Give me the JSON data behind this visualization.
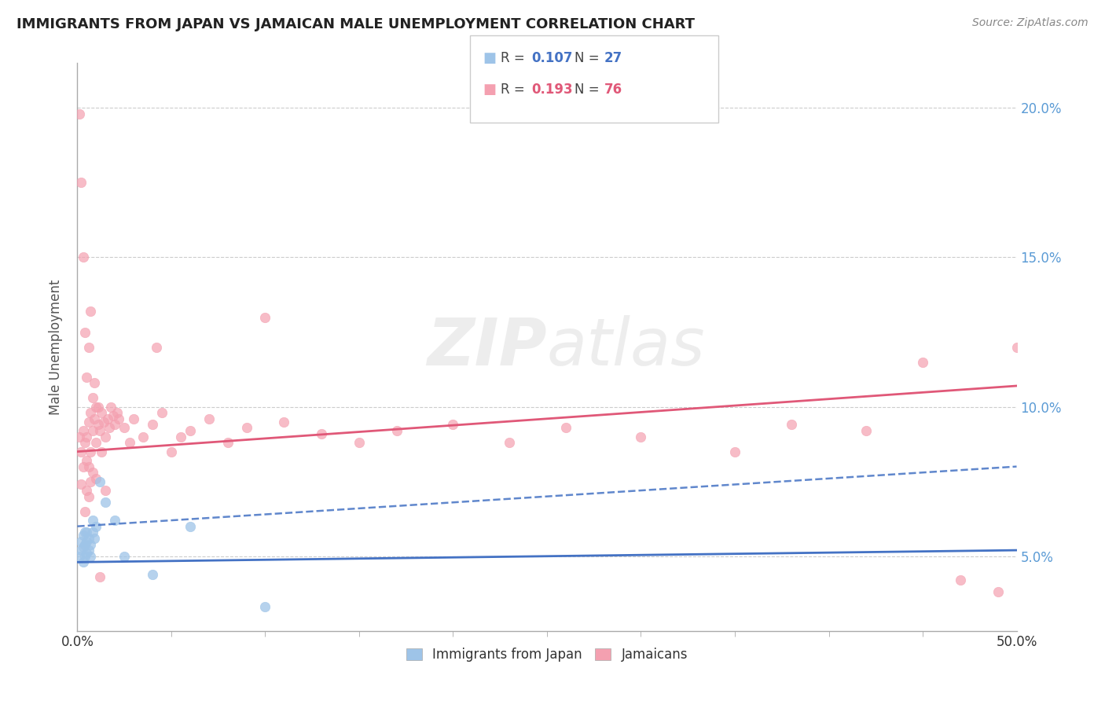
{
  "title": "IMMIGRANTS FROM JAPAN VS JAMAICAN MALE UNEMPLOYMENT CORRELATION CHART",
  "source": "Source: ZipAtlas.com",
  "ylabel": "Male Unemployment",
  "watermark": "ZIPatlas",
  "legend_label1": "Immigrants from Japan",
  "legend_label2": "Jamaicans",
  "xlim": [
    0.0,
    0.5
  ],
  "ylim": [
    0.025,
    0.215
  ],
  "yticks": [
    0.05,
    0.1,
    0.15,
    0.2
  ],
  "ytick_right_labels": [
    "5.0%",
    "10.0%",
    "15.0%",
    "20.0%"
  ],
  "color_blue": "#9EC4E8",
  "color_pink": "#F4A0B0",
  "color_blue_line": "#4472C4",
  "color_pink_line": "#E05878",
  "blue_line_start": 0.048,
  "blue_line_end": 0.052,
  "pink_line_start": 0.085,
  "pink_line_end": 0.107,
  "dash_line_start": 0.06,
  "dash_line_end": 0.08,
  "japan_x": [
    0.001,
    0.002,
    0.002,
    0.003,
    0.003,
    0.003,
    0.004,
    0.004,
    0.004,
    0.005,
    0.005,
    0.005,
    0.006,
    0.006,
    0.007,
    0.007,
    0.008,
    0.008,
    0.009,
    0.01,
    0.012,
    0.015,
    0.02,
    0.025,
    0.04,
    0.06,
    0.1
  ],
  "japan_y": [
    0.05,
    0.052,
    0.055,
    0.048,
    0.053,
    0.057,
    0.05,
    0.054,
    0.058,
    0.051,
    0.055,
    0.058,
    0.052,
    0.056,
    0.05,
    0.054,
    0.058,
    0.062,
    0.056,
    0.06,
    0.075,
    0.068,
    0.062,
    0.05,
    0.044,
    0.06,
    0.033
  ],
  "jamaican_x": [
    0.001,
    0.001,
    0.002,
    0.002,
    0.003,
    0.003,
    0.004,
    0.004,
    0.005,
    0.005,
    0.005,
    0.006,
    0.006,
    0.006,
    0.007,
    0.007,
    0.007,
    0.008,
    0.008,
    0.009,
    0.009,
    0.01,
    0.01,
    0.011,
    0.011,
    0.012,
    0.013,
    0.013,
    0.014,
    0.015,
    0.016,
    0.017,
    0.018,
    0.019,
    0.02,
    0.021,
    0.022,
    0.025,
    0.028,
    0.03,
    0.035,
    0.04,
    0.042,
    0.045,
    0.05,
    0.055,
    0.06,
    0.07,
    0.08,
    0.09,
    0.1,
    0.11,
    0.13,
    0.15,
    0.17,
    0.2,
    0.23,
    0.26,
    0.3,
    0.35,
    0.38,
    0.42,
    0.45,
    0.47,
    0.49,
    0.5,
    0.002,
    0.003,
    0.004,
    0.005,
    0.006,
    0.007,
    0.008,
    0.01,
    0.012,
    0.015
  ],
  "jamaican_y": [
    0.198,
    0.09,
    0.175,
    0.085,
    0.15,
    0.092,
    0.125,
    0.088,
    0.11,
    0.09,
    0.082,
    0.12,
    0.095,
    0.08,
    0.132,
    0.098,
    0.085,
    0.103,
    0.092,
    0.108,
    0.096,
    0.1,
    0.088,
    0.094,
    0.1,
    0.092,
    0.098,
    0.085,
    0.095,
    0.09,
    0.096,
    0.093,
    0.1,
    0.097,
    0.094,
    0.098,
    0.096,
    0.093,
    0.088,
    0.096,
    0.09,
    0.094,
    0.12,
    0.098,
    0.085,
    0.09,
    0.092,
    0.096,
    0.088,
    0.093,
    0.13,
    0.095,
    0.091,
    0.088,
    0.092,
    0.094,
    0.088,
    0.093,
    0.09,
    0.085,
    0.094,
    0.092,
    0.115,
    0.042,
    0.038,
    0.12,
    0.074,
    0.08,
    0.065,
    0.072,
    0.07,
    0.075,
    0.078,
    0.076,
    0.043,
    0.072
  ]
}
